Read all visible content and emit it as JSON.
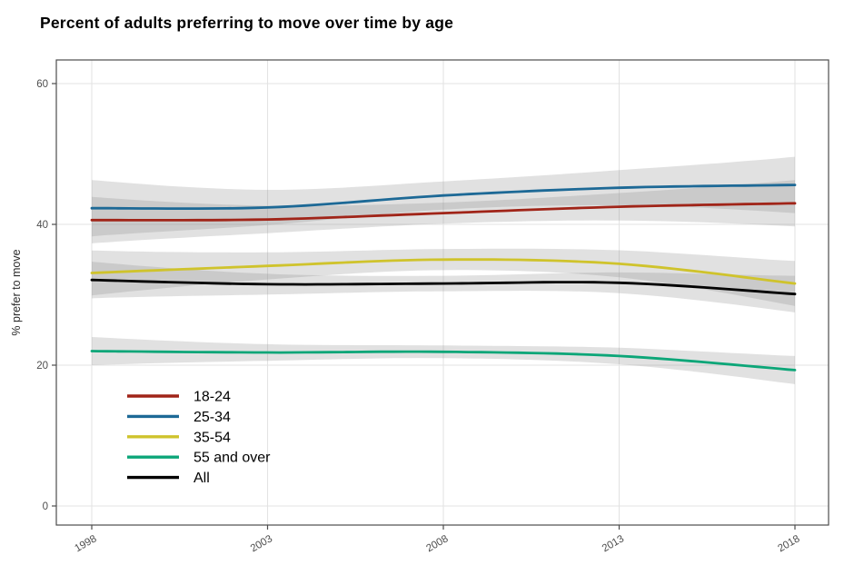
{
  "chart_data": {
    "type": "line",
    "title": "Percent of adults preferring to move over time by age",
    "xlabel": "",
    "ylabel": "% prefer to move",
    "x": [
      1998,
      2003,
      2008,
      2013,
      2018
    ],
    "x_tick_labels": [
      "1998",
      "2003",
      "2008",
      "2013",
      "2018"
    ],
    "y_ticks": [
      0,
      20,
      40,
      60
    ],
    "xlim": [
      1997,
      2019
    ],
    "ylim": [
      -2.7,
      63.4
    ],
    "grid": true,
    "legend_position": "inside-bottom-left",
    "styles": {
      "ribbon_color": "#8a8a8a",
      "ribbon_opacity": 0.26,
      "grid_color": "#e3e3e3",
      "panel_border_color": "#4d4d4d",
      "tick_color": "#4d4d4d",
      "tick_label_color": "#4d4d4d",
      "axis_title_color": "#2b2b2b",
      "legend_text_color": "#000000"
    },
    "series": [
      {
        "name": "18-24",
        "color": "#a02418",
        "values": [
          40.6,
          40.7,
          41.6,
          42.5,
          43.0
        ],
        "ci_halfwidth_mid": 1.5,
        "ci_halfwidth_end": 3.3
      },
      {
        "name": "25-34",
        "color": "#1d6996",
        "values": [
          42.3,
          42.4,
          44.1,
          45.2,
          45.6
        ],
        "ci_halfwidth_mid": 2.0,
        "ci_halfwidth_end": 4.0
      },
      {
        "name": "35-54",
        "color": "#cfc32c",
        "values": [
          33.1,
          34.1,
          35.0,
          34.4,
          31.6
        ],
        "ci_halfwidth_mid": 1.5,
        "ci_halfwidth_end": 3.2
      },
      {
        "name": "55 and over",
        "color": "#0ca678",
        "values": [
          22.0,
          21.8,
          21.9,
          21.3,
          19.3
        ],
        "ci_halfwidth_mid": 0.9,
        "ci_halfwidth_end": 2.0
      },
      {
        "name": "All",
        "color": "#000000",
        "values": [
          32.1,
          31.5,
          31.6,
          31.7,
          30.1
        ],
        "ci_halfwidth_mid": 1.1,
        "ci_halfwidth_end": 2.6
      }
    ]
  }
}
